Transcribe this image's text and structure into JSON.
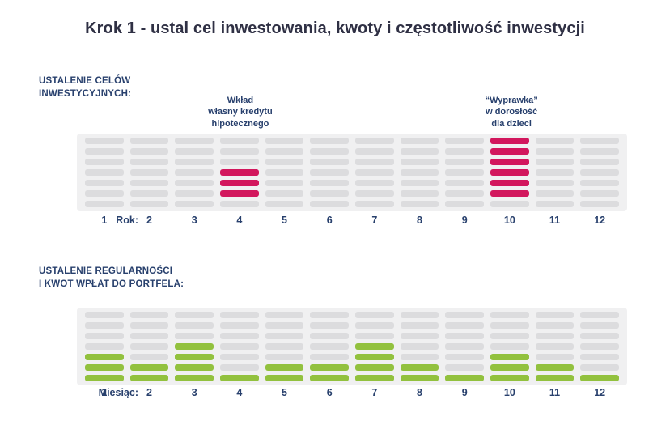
{
  "page": {
    "title": "Krok 1 - ustal cel inwestowania, kwoty i częstotliwość inwestycji"
  },
  "colors": {
    "navy_text": "#28406d",
    "title_text": "#2f3044",
    "panel_bg": "#f0f0f1",
    "bar_gray": "#dcdcde",
    "bar_red": "#d2175d",
    "bar_green": "#92c13e"
  },
  "sections": [
    {
      "heading": "USTALENIE CELÓW\nINWESTYCYJNYCH:",
      "axis_label": "Rok:"
    },
    {
      "heading": "USTALENIE REGULARNOŚCI\nI KWOT WPŁAT DO PORTFELA:",
      "axis_label": "Miesiąc:"
    }
  ],
  "chart_data": [
    {
      "type": "heatmap",
      "title": "USTALENIE CELÓW INWESTYCYJNYCH:",
      "xlabel": "Rok:",
      "categories": [
        "1",
        "2",
        "3",
        "4",
        "5",
        "6",
        "7",
        "8",
        "9",
        "10",
        "11",
        "12"
      ],
      "rows_per_column": 7,
      "base_color": "#dcdcde",
      "highlight_color": "#d2175d",
      "highlighted_rows_by_column": {
        "4": [
          3,
          4,
          5
        ],
        "10": [
          0,
          1,
          2,
          3,
          4,
          5
        ]
      },
      "annotations": [
        {
          "column": 4,
          "text": "Wkład\nwłasny kredytu\nhipotecznego"
        },
        {
          "column": 10,
          "text": "“Wyprawka”\nw dorosłość\ndla dzieci"
        }
      ]
    },
    {
      "type": "heatmap",
      "title": "USTALENIE REGULARNOŚCI I KWOT WPŁAT DO PORTFELA:",
      "xlabel": "Miesiąc:",
      "categories": [
        "1",
        "2",
        "3",
        "4",
        "5",
        "6",
        "7",
        "8",
        "9",
        "10",
        "11",
        "12"
      ],
      "rows_per_column": 7,
      "base_color": "#dcdcde",
      "highlight_color": "#92c13e",
      "filled_from_bottom": [
        3,
        2,
        4,
        1,
        2,
        2,
        4,
        2,
        1,
        3,
        2,
        1
      ]
    }
  ]
}
